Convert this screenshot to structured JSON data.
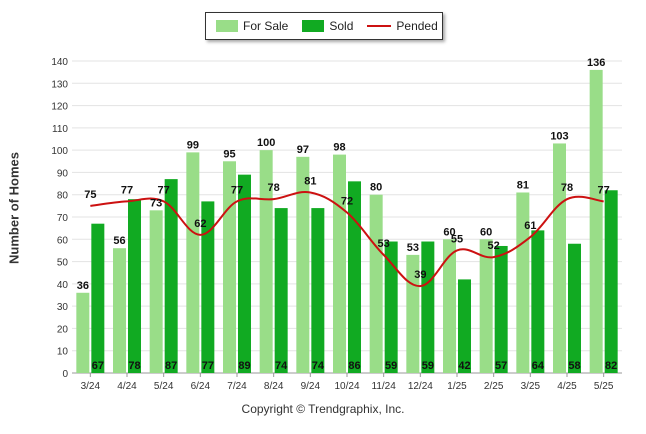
{
  "chart_data": {
    "type": "bar",
    "categories": [
      "3/24",
      "4/24",
      "5/24",
      "6/24",
      "7/24",
      "8/24",
      "9/24",
      "10/24",
      "11/24",
      "12/24",
      "1/25",
      "2/25",
      "3/25",
      "4/25",
      "5/25"
    ],
    "series": [
      {
        "name": "For Sale",
        "type": "bar",
        "color": "#99dd88",
        "values": [
          36,
          56,
          73,
          99,
          95,
          100,
          97,
          98,
          80,
          53,
          60,
          60,
          81,
          103,
          136
        ]
      },
      {
        "name": "Sold",
        "type": "bar",
        "color": "#11aa22",
        "values": [
          67,
          78,
          87,
          77,
          89,
          74,
          74,
          86,
          59,
          59,
          42,
          57,
          64,
          58,
          82
        ]
      },
      {
        "name": "Pended",
        "type": "line",
        "color": "#cc1111",
        "values": [
          75,
          77,
          77,
          62,
          77,
          78,
          81,
          72,
          53,
          39,
          55,
          52,
          61,
          78,
          77
        ]
      }
    ],
    "ylabel": "Number of Homes",
    "xlabel": "",
    "ylim": [
      0,
      140
    ],
    "yticks": [
      0,
      10,
      20,
      30,
      40,
      50,
      60,
      70,
      80,
      90,
      100,
      110,
      120,
      130,
      140
    ],
    "grid": true,
    "legend_placement": "top-center"
  },
  "legend": {
    "for_sale": "For Sale",
    "sold": "Sold",
    "pended": "Pended"
  },
  "footer": {
    "copyright": "Copyright © Trendgraphix, Inc."
  }
}
